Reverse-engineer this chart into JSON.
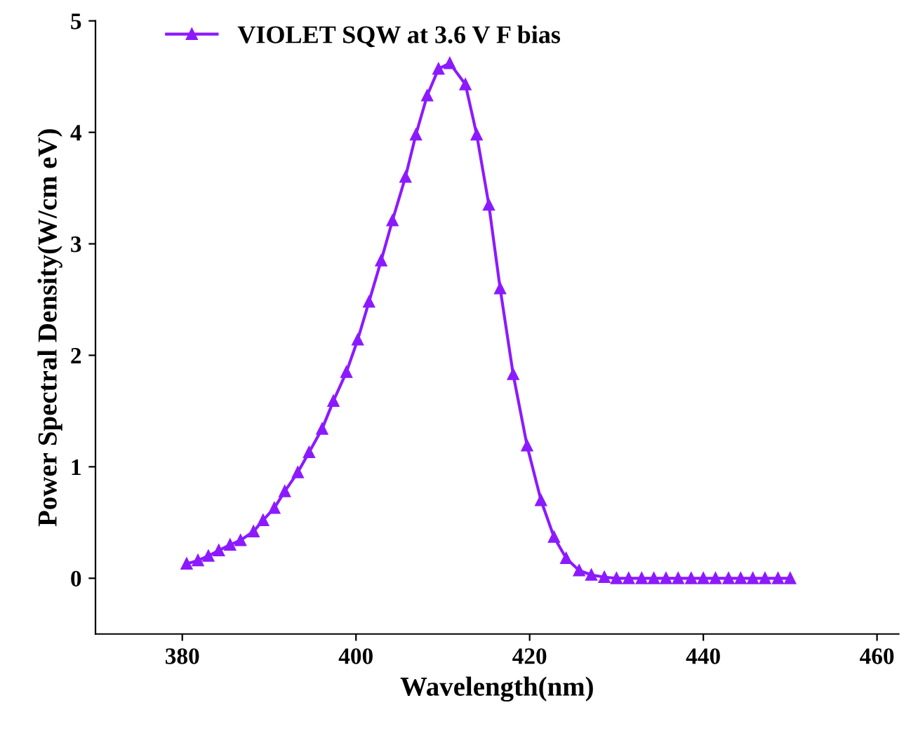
{
  "chart_data": {
    "type": "line",
    "xlabel": "Wavelength(nm)",
    "ylabel": "Power Spectral Density(W/cm eV)",
    "xlim": [
      370,
      462.5
    ],
    "xticks": [
      380,
      400,
      420,
      440,
      460
    ],
    "ylim": [
      -0.5,
      5
    ],
    "yticks": [
      0,
      1,
      2,
      3,
      4,
      5
    ],
    "grid": false,
    "legend": "top left",
    "marker": "triangle",
    "line_style": "solid",
    "series": [
      {
        "name": "VIOLET SQW at 3.6 V F bias",
        "color": "#8c1aff",
        "x": [
          380.5,
          381.8,
          383.0,
          384.2,
          385.5,
          386.7,
          388.2,
          389.3,
          390.6,
          391.8,
          393.3,
          394.6,
          396.1,
          397.4,
          398.9,
          400.2,
          401.5,
          402.9,
          404.2,
          405.7,
          406.9,
          408.2,
          409.5,
          410.8,
          412.6,
          413.9,
          415.3,
          416.6,
          418.1,
          419.7,
          421.3,
          422.8,
          424.2,
          425.7,
          427.1,
          428.6,
          430.0,
          431.4,
          432.9,
          434.3,
          435.7,
          437.1,
          438.6,
          440.0,
          441.4,
          442.9,
          444.3,
          445.7,
          447.1,
          448.6,
          450.0
        ],
        "values": [
          0.13,
          0.16,
          0.2,
          0.25,
          0.3,
          0.34,
          0.42,
          0.52,
          0.63,
          0.78,
          0.95,
          1.13,
          1.34,
          1.59,
          1.85,
          2.14,
          2.48,
          2.85,
          3.21,
          3.6,
          3.98,
          4.33,
          4.57,
          4.62,
          4.43,
          3.98,
          3.35,
          2.6,
          1.83,
          1.19,
          0.7,
          0.37,
          0.18,
          0.07,
          0.03,
          0.01,
          0,
          0,
          0,
          0,
          0,
          0,
          0,
          0,
          0,
          0,
          0,
          0,
          0,
          0,
          0
        ]
      }
    ]
  }
}
